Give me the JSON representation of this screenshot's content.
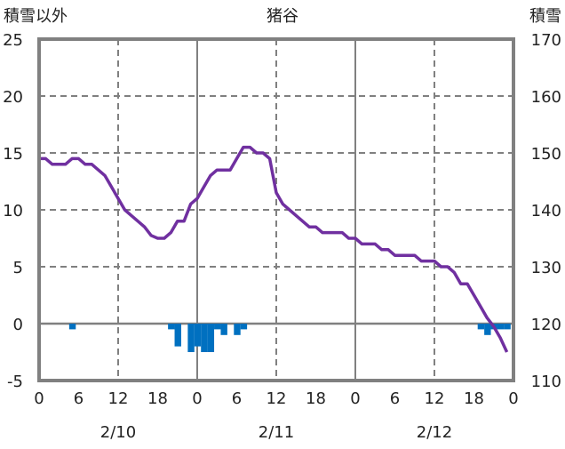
{
  "chart_data": {
    "type": "bar+line",
    "title": "猪谷",
    "ylabel_left": "積雪以外",
    "ylabel_right": "積雪",
    "ylim_left": [
      -5,
      25
    ],
    "ylim_right": [
      110,
      170
    ],
    "yticks_left": [
      "25",
      "20",
      "15",
      "10",
      "5",
      "0",
      "-5"
    ],
    "yticks_right": [
      "170",
      "160",
      "150",
      "140",
      "130",
      "120",
      "110"
    ],
    "xticks": [
      "0",
      "6",
      "12",
      "18",
      "0",
      "6",
      "12",
      "18",
      "0",
      "6",
      "12",
      "18",
      "0"
    ],
    "date_labels": [
      "2/10",
      "2/11",
      "2/12"
    ],
    "hours_total": 72,
    "grid": true,
    "colors": {
      "line": "#7030A0",
      "bar": "#0070C0",
      "axis": "#808080"
    },
    "series": [
      {
        "name": "積雪以外",
        "type": "bar",
        "axis": "left",
        "values": [
          0,
          0,
          0,
          0,
          0,
          -0.5,
          0,
          0,
          0,
          0,
          0,
          0,
          0,
          0,
          0,
          0,
          0,
          0,
          0,
          0,
          -0.5,
          -2,
          0,
          -2.5,
          -2,
          -2.5,
          -2.5,
          -0.5,
          -1,
          0,
          -1,
          -0.5,
          0,
          0,
          0,
          0,
          0,
          0,
          0,
          0,
          0,
          0,
          0,
          0,
          0,
          0,
          0,
          0,
          0,
          0,
          0,
          0,
          0,
          0,
          0,
          0,
          0,
          0,
          0,
          0,
          0,
          0,
          0,
          0,
          0,
          0,
          0,
          -0.5,
          -1,
          -0.5,
          -0.5,
          -0.5
        ]
      },
      {
        "name": "積雪",
        "type": "line",
        "axis": "right",
        "values": [
          149,
          149,
          148,
          148,
          148,
          149,
          149,
          148,
          148,
          147,
          146,
          144,
          142,
          140,
          139,
          138,
          137,
          135.5,
          135,
          135,
          136,
          138,
          138,
          141,
          142,
          144,
          146,
          147,
          147,
          147,
          149,
          151,
          151,
          150,
          150,
          149,
          143,
          141,
          140,
          139,
          138,
          137,
          137,
          136,
          136,
          136,
          136,
          135,
          135,
          134,
          134,
          134,
          133,
          133,
          132,
          132,
          132,
          132,
          131,
          131,
          131,
          130,
          130,
          129,
          127,
          127,
          125,
          123,
          121,
          119.5,
          117.5,
          115
        ]
      }
    ]
  }
}
